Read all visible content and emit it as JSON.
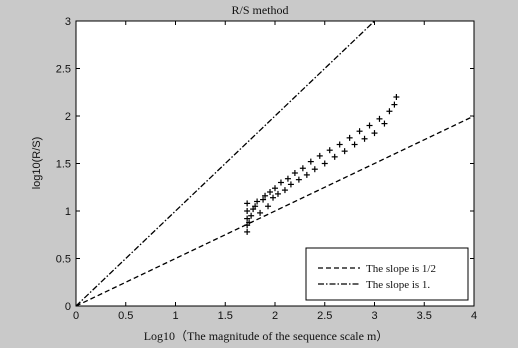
{
  "chart_data": {
    "type": "scatter",
    "title": "R/S method",
    "xlabel": "Log10（The magnitude of the sequence scale m）",
    "ylabel": "log10(R/S)",
    "xlim": [
      0,
      4
    ],
    "ylim": [
      0,
      3
    ],
    "xticks": [
      "0",
      "0.5",
      "1",
      "1.5",
      "2",
      "2.5",
      "3",
      "3.5",
      "4"
    ],
    "yticks": [
      "0",
      "0.5",
      "1",
      "1.5",
      "2",
      "2.5",
      "3"
    ],
    "grid": false,
    "legend_position": "bottom-right",
    "series": [
      {
        "kind": "scatter",
        "marker": "+",
        "color": "#000000",
        "points": [
          [
            1.72,
            0.78
          ],
          [
            1.72,
            0.85
          ],
          [
            1.72,
            0.92
          ],
          [
            1.72,
            1.0
          ],
          [
            1.72,
            1.08
          ],
          [
            1.74,
            0.88
          ],
          [
            1.76,
            0.95
          ],
          [
            1.78,
            1.02
          ],
          [
            1.8,
            1.05
          ],
          [
            1.82,
            1.1
          ],
          [
            1.85,
            0.98
          ],
          [
            1.88,
            1.12
          ],
          [
            1.9,
            1.16
          ],
          [
            1.93,
            1.05
          ],
          [
            1.95,
            1.2
          ],
          [
            1.98,
            1.14
          ],
          [
            2.0,
            1.24
          ],
          [
            2.03,
            1.18
          ],
          [
            2.06,
            1.3
          ],
          [
            2.1,
            1.22
          ],
          [
            2.13,
            1.34
          ],
          [
            2.16,
            1.28
          ],
          [
            2.2,
            1.4
          ],
          [
            2.24,
            1.33
          ],
          [
            2.28,
            1.45
          ],
          [
            2.32,
            1.38
          ],
          [
            2.36,
            1.52
          ],
          [
            2.4,
            1.44
          ],
          [
            2.45,
            1.58
          ],
          [
            2.5,
            1.5
          ],
          [
            2.55,
            1.64
          ],
          [
            2.6,
            1.57
          ],
          [
            2.65,
            1.7
          ],
          [
            2.7,
            1.63
          ],
          [
            2.75,
            1.77
          ],
          [
            2.8,
            1.7
          ],
          [
            2.85,
            1.84
          ],
          [
            2.9,
            1.76
          ],
          [
            2.95,
            1.9
          ],
          [
            3.0,
            1.82
          ],
          [
            3.05,
            1.97
          ],
          [
            3.1,
            1.92
          ],
          [
            3.15,
            2.05
          ],
          [
            3.2,
            2.12
          ],
          [
            3.22,
            2.2
          ]
        ]
      },
      {
        "name": "The slope is 1/2",
        "kind": "line",
        "dash": "dashed",
        "slope": 0.5,
        "x": [
          0,
          4
        ],
        "y": [
          0,
          2
        ]
      },
      {
        "name": "The slope is 1.",
        "kind": "line",
        "dash": "dashdot",
        "slope": 1,
        "x": [
          0,
          3
        ],
        "y": [
          0,
          3
        ]
      }
    ]
  }
}
